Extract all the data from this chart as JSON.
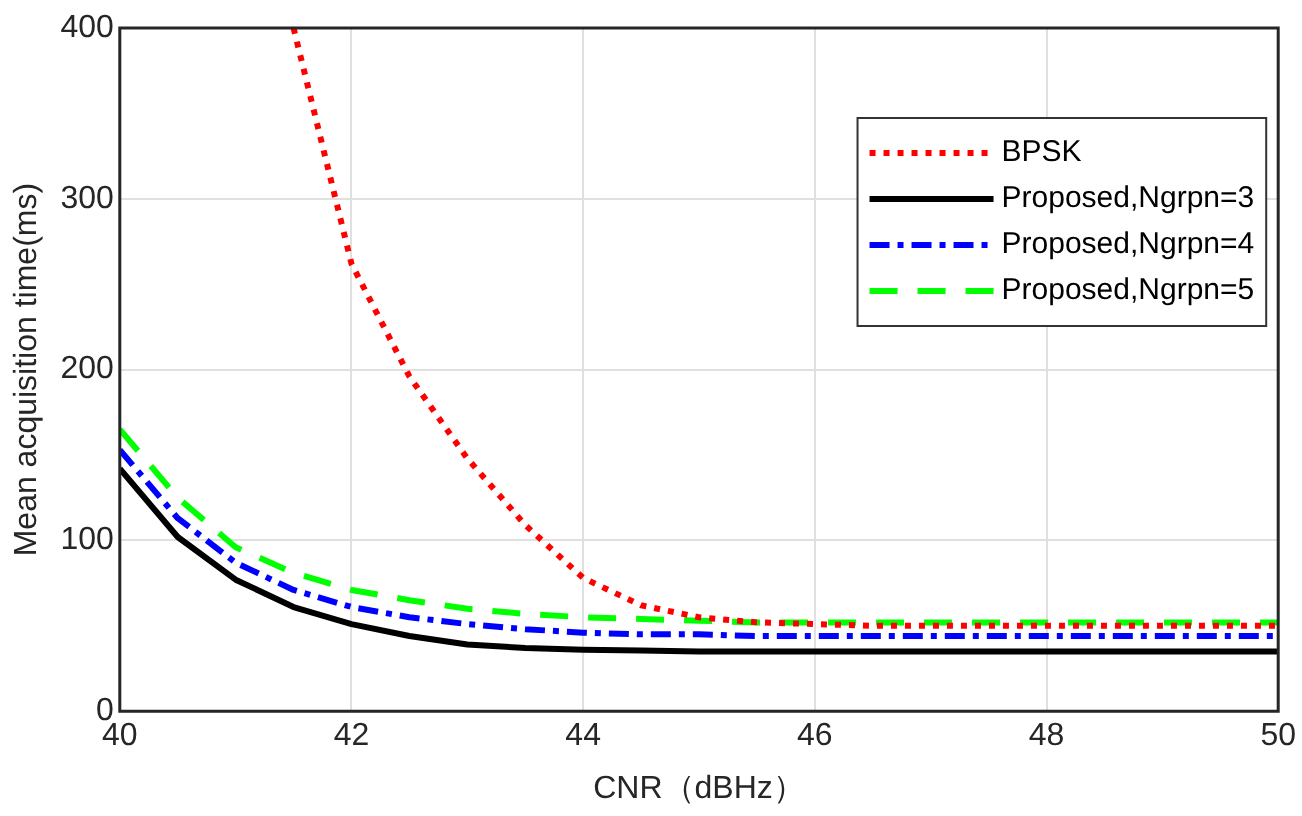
{
  "chart_data": {
    "type": "line",
    "xlabel": "CNR（dBHz）",
    "ylabel": "Mean acquisition time(ms)",
    "x": [
      40,
      40.5,
      41,
      41.5,
      42,
      42.5,
      43,
      43.5,
      44,
      44.5,
      45,
      45.5,
      46,
      46.5,
      47,
      47.5,
      48,
      48.5,
      49,
      49.5,
      50
    ],
    "series": [
      {
        "name": "BPSK",
        "color": "#ff0000",
        "line_style": "dotted",
        "values": [
          null,
          null,
          null,
          400,
          262,
          196,
          148,
          109,
          78,
          62,
          55,
          52,
          51,
          50,
          50,
          50,
          50,
          50,
          50,
          50,
          50
        ]
      },
      {
        "name": "Proposed,Ngrpn=3",
        "color": "#000000",
        "line_style": "solid",
        "values": [
          142,
          102,
          77,
          61,
          51,
          44,
          39,
          37,
          36,
          35.5,
          35,
          35,
          35,
          35,
          35,
          35,
          35,
          35,
          35,
          35,
          35
        ]
      },
      {
        "name": "Proposed,Ngrpn=4",
        "color": "#0000ff",
        "line_style": "dashdot",
        "values": [
          153,
          113,
          87,
          71,
          61,
          55,
          51,
          48,
          46,
          45,
          45,
          44,
          44,
          44,
          44,
          44,
          44,
          44,
          44,
          44,
          44
        ]
      },
      {
        "name": "Proposed,Ngrpn=5",
        "color": "#00ff00",
        "line_style": "dashed",
        "values": [
          165,
          125,
          96,
          81,
          71,
          65,
          60,
          57,
          55,
          54,
          53,
          52,
          52,
          52,
          52,
          52,
          52,
          52,
          52,
          52,
          52
        ]
      }
    ],
    "xlim": [
      40,
      50
    ],
    "xticks": [
      40,
      42,
      44,
      46,
      48,
      50
    ],
    "ylim": [
      0,
      400
    ],
    "yticks": [
      0,
      100,
      200,
      300,
      400
    ],
    "grid": true,
    "legend": "top right",
    "marker": "none"
  }
}
